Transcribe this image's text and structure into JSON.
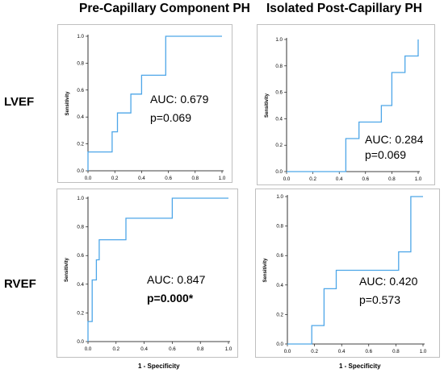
{
  "column_titles": [
    "Pre-Capillary Component  PH",
    "Isolated Post-Capillary PH"
  ],
  "row_labels": [
    "LVEF",
    "RVEF"
  ],
  "x_axis_title": "1 - Specificity",
  "colors": {
    "curve": "#4da6e8",
    "axis": "#000000",
    "frame": "#bfbfbf"
  },
  "chart_data": [
    {
      "type": "line",
      "title": "",
      "xlabel": "",
      "ylabel": "Sensitivity",
      "xlim": [
        0,
        1
      ],
      "ylim": [
        0,
        1
      ],
      "x_ticks": [
        "0.0",
        "0.2",
        "0.4",
        "0.6",
        "0.8",
        "1.0"
      ],
      "y_ticks": [
        "0.0",
        "0.2",
        "0.4",
        "0.6",
        "0.8",
        "1.0"
      ],
      "grid": false,
      "annotations": [
        {
          "text": "AUC: 0.679",
          "bold": false
        },
        {
          "text": "p=0.069",
          "bold": false
        }
      ],
      "series": [
        {
          "x": [
            0,
            0,
            0.18,
            0.18,
            0.22,
            0.22,
            0.32,
            0.32,
            0.4,
            0.4,
            0.58,
            0.58,
            1.0
          ],
          "y": [
            0,
            0.14,
            0.14,
            0.29,
            0.29,
            0.43,
            0.43,
            0.57,
            0.57,
            0.71,
            0.71,
            1.0,
            1.0
          ]
        }
      ]
    },
    {
      "type": "line",
      "title": "",
      "xlabel": "",
      "ylabel": "Sensitivity",
      "xlim": [
        0,
        1
      ],
      "ylim": [
        0,
        1
      ],
      "x_ticks": [
        "0.0",
        "0.2",
        "0.4",
        "0.6",
        "0.8",
        "1.0"
      ],
      "y_ticks": [
        "0.0",
        "0.2",
        "0.4",
        "0.6",
        "0.8",
        "1.0"
      ],
      "grid": false,
      "annotations": [
        {
          "text": "AUC: 0.284",
          "bold": false
        },
        {
          "text": "p=0.069",
          "bold": false
        }
      ],
      "series": [
        {
          "x": [
            0,
            0.45,
            0.45,
            0.55,
            0.55,
            0.72,
            0.72,
            0.8,
            0.8,
            0.9,
            0.9,
            1.0,
            1.0
          ],
          "y": [
            0,
            0,
            0.25,
            0.25,
            0.375,
            0.375,
            0.5,
            0.5,
            0.75,
            0.75,
            0.875,
            0.875,
            1.0
          ]
        }
      ]
    },
    {
      "type": "line",
      "title": "",
      "xlabel": "1 - Specificity",
      "ylabel": "Sensitivity",
      "xlim": [
        0,
        1
      ],
      "ylim": [
        0,
        1
      ],
      "x_ticks": [
        "0.0",
        "0.2",
        "0.4",
        "0.6",
        "0.8",
        "1.0"
      ],
      "y_ticks": [
        "0.0",
        "0.2",
        "0.4",
        "0.6",
        "0.8",
        "1.0"
      ],
      "grid": false,
      "annotations": [
        {
          "text": "AUC: 0.847",
          "bold": false
        },
        {
          "text": "p=0.000*",
          "bold": true
        }
      ],
      "series": [
        {
          "x": [
            0,
            0,
            0.03,
            0.03,
            0.06,
            0.06,
            0.08,
            0.08,
            0.27,
            0.27,
            0.6,
            0.6,
            1.0
          ],
          "y": [
            0,
            0.14,
            0.14,
            0.43,
            0.43,
            0.57,
            0.57,
            0.71,
            0.71,
            0.86,
            0.86,
            1.0,
            1.0
          ]
        }
      ]
    },
    {
      "type": "line",
      "title": "",
      "xlabel": "1 - Specificity",
      "ylabel": "Sensitivity",
      "xlim": [
        0,
        1
      ],
      "ylim": [
        0,
        1
      ],
      "x_ticks": [
        "0.0",
        "0.2",
        "0.4",
        "0.6",
        "0.8",
        "1.0"
      ],
      "y_ticks": [
        "0.0",
        "0.2",
        "0.4",
        "0.6",
        "0.8",
        "1.0"
      ],
      "grid": false,
      "annotations": [
        {
          "text": "AUC: 0.420",
          "bold": false
        },
        {
          "text": "p=0.573",
          "bold": false
        }
      ],
      "series": [
        {
          "x": [
            0,
            0.18,
            0.18,
            0.27,
            0.27,
            0.36,
            0.36,
            0.82,
            0.82,
            0.91,
            0.91,
            1.0
          ],
          "y": [
            0,
            0,
            0.125,
            0.125,
            0.375,
            0.375,
            0.5,
            0.5,
            0.625,
            0.625,
            1.0,
            1.0
          ]
        }
      ]
    }
  ]
}
